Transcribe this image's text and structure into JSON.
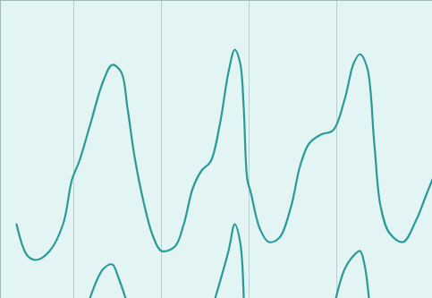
{
  "chart_data": {
    "type": "line",
    "xlim": [
      0,
      483
    ],
    "ylim": [
      0,
      333
    ],
    "xticks": [
      82,
      180,
      278,
      376
    ],
    "yticks": [],
    "grid": true,
    "tick_labels": false,
    "series": [
      {
        "color": "#2a9a98",
        "x": [
          18,
          30,
          40,
          55,
          70,
          80,
          88,
          100,
          115,
          125,
          135,
          142,
          150,
          160,
          170,
          180,
          195,
          205,
          215,
          225,
          235,
          245,
          255,
          262,
          268,
          272,
          276,
          280,
          290,
          300,
          312,
          325,
          335,
          345,
          358,
          372,
          385,
          395,
          402,
          410,
          418,
          425,
          435,
          450,
          465,
          475,
          483
        ],
        "values": [
          83,
          48,
          43,
          53,
          83,
          133,
          153,
          193,
          243,
          261,
          253,
          213,
          158,
          108,
          71,
          53,
          58,
          83,
          123,
          143,
          153,
          193,
          253,
          278,
          263,
          213,
          133,
          118,
          78,
          63,
          68,
          103,
          148,
          173,
          183,
          188,
          223,
          263,
          273,
          258,
          173,
          103,
          73,
          63,
          88,
          113,
          133
        ]
      },
      {
        "color": "#2a9a98",
        "x": [
          100,
          115,
          125,
          132,
          140,
          190,
          240,
          255,
          262,
          268,
          272,
          320,
          375,
          385,
          395,
          402,
          407,
          412
        ],
        "values": [
          0,
          33,
          38,
          23,
          0,
          null,
          0,
          53,
          83,
          63,
          0,
          null,
          0,
          33,
          48,
          53,
          38,
          0
        ]
      }
    ]
  }
}
